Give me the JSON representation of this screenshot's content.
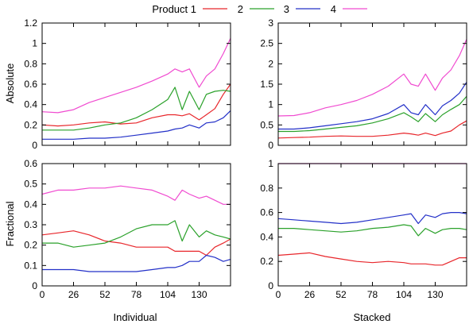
{
  "legend": {
    "items": [
      {
        "label": "Product 1",
        "color": "#e8262b"
      },
      {
        "label": "2",
        "color": "#2aa12a"
      },
      {
        "label": "3",
        "color": "#2330c8"
      },
      {
        "label": "4",
        "color": "#f04bd0"
      }
    ]
  },
  "labels": {
    "row_top": "Absolute",
    "row_bottom": "Fractional",
    "col_left": "Individual",
    "col_right": "Stacked"
  },
  "chart_data": [
    {
      "type": "line",
      "panel": "absolute-individual",
      "xlim": [
        0,
        156
      ],
      "ylim": [
        0,
        1.2
      ],
      "xticks": [
        0,
        26,
        52,
        78,
        104,
        130
      ],
      "yticks": [
        "0",
        "0.2",
        "0.4",
        "0.6",
        "0.8",
        "1",
        "1.2"
      ],
      "x": [
        0,
        13,
        26,
        39,
        52,
        65,
        78,
        91,
        104,
        110,
        116,
        122,
        130,
        136,
        143,
        150,
        156
      ],
      "series": [
        {
          "name": "Product 1",
          "values": [
            0.2,
            0.19,
            0.2,
            0.22,
            0.23,
            0.21,
            0.22,
            0.27,
            0.3,
            0.3,
            0.29,
            0.31,
            0.25,
            0.3,
            0.36,
            0.5,
            0.6
          ]
        },
        {
          "name": "2",
          "values": [
            0.15,
            0.15,
            0.15,
            0.17,
            0.2,
            0.22,
            0.27,
            0.35,
            0.45,
            0.57,
            0.35,
            0.53,
            0.35,
            0.5,
            0.53,
            0.54,
            0.53
          ]
        },
        {
          "name": "3",
          "values": [
            0.06,
            0.06,
            0.06,
            0.07,
            0.07,
            0.08,
            0.1,
            0.12,
            0.14,
            0.16,
            0.17,
            0.2,
            0.17,
            0.22,
            0.23,
            0.27,
            0.34
          ]
        },
        {
          "name": "4",
          "values": [
            0.33,
            0.32,
            0.35,
            0.42,
            0.47,
            0.52,
            0.57,
            0.63,
            0.7,
            0.75,
            0.72,
            0.75,
            0.57,
            0.68,
            0.75,
            0.9,
            1.05
          ]
        }
      ]
    },
    {
      "type": "line",
      "panel": "absolute-stacked",
      "xlim": [
        0,
        156
      ],
      "ylim": [
        0,
        3
      ],
      "xticks": [
        0,
        26,
        52,
        78,
        104,
        130
      ],
      "yticks": [
        "0",
        "0.5",
        "1",
        "1.5",
        "2",
        "2.5",
        "3"
      ],
      "x": [
        0,
        13,
        26,
        39,
        52,
        65,
        78,
        91,
        104,
        110,
        116,
        122,
        130,
        136,
        143,
        150,
        156
      ],
      "series": [
        {
          "name": "Product 1",
          "values": [
            0.18,
            0.19,
            0.2,
            0.22,
            0.23,
            0.22,
            0.22,
            0.25,
            0.3,
            0.28,
            0.25,
            0.3,
            0.24,
            0.3,
            0.35,
            0.5,
            0.6
          ]
        },
        {
          "name": "2",
          "values": [
            0.34,
            0.34,
            0.36,
            0.4,
            0.44,
            0.48,
            0.55,
            0.65,
            0.8,
            0.7,
            0.58,
            0.78,
            0.58,
            0.75,
            0.88,
            1.0,
            1.2
          ]
        },
        {
          "name": "3",
          "values": [
            0.4,
            0.4,
            0.43,
            0.48,
            0.53,
            0.58,
            0.65,
            0.78,
            1.0,
            0.8,
            0.75,
            1.0,
            0.75,
            0.97,
            1.1,
            1.28,
            1.55
          ]
        },
        {
          "name": "4",
          "values": [
            0.72,
            0.73,
            0.8,
            0.92,
            1.0,
            1.1,
            1.25,
            1.45,
            1.75,
            1.5,
            1.45,
            1.75,
            1.35,
            1.65,
            1.85,
            2.2,
            2.6
          ]
        }
      ]
    },
    {
      "type": "line",
      "panel": "fractional-individual",
      "xlim": [
        0,
        156
      ],
      "ylim": [
        0,
        0.6
      ],
      "xticks": [
        0,
        26,
        52,
        78,
        104,
        130
      ],
      "yticks": [
        "0",
        "0.1",
        "0.2",
        "0.3",
        "0.4",
        "0.5",
        "0.6"
      ],
      "x": [
        0,
        13,
        26,
        39,
        52,
        65,
        78,
        91,
        104,
        110,
        116,
        122,
        130,
        136,
        143,
        150,
        156
      ],
      "series": [
        {
          "name": "Product 1",
          "values": [
            0.25,
            0.26,
            0.27,
            0.25,
            0.22,
            0.21,
            0.19,
            0.19,
            0.19,
            0.17,
            0.17,
            0.17,
            0.17,
            0.15,
            0.19,
            0.21,
            0.23
          ]
        },
        {
          "name": "2",
          "values": [
            0.21,
            0.21,
            0.19,
            0.2,
            0.21,
            0.24,
            0.28,
            0.3,
            0.3,
            0.32,
            0.22,
            0.3,
            0.24,
            0.27,
            0.25,
            0.24,
            0.23
          ]
        },
        {
          "name": "3",
          "values": [
            0.08,
            0.08,
            0.08,
            0.07,
            0.07,
            0.07,
            0.07,
            0.08,
            0.09,
            0.09,
            0.1,
            0.12,
            0.12,
            0.15,
            0.14,
            0.12,
            0.13
          ]
        },
        {
          "name": "4",
          "values": [
            0.45,
            0.47,
            0.47,
            0.48,
            0.48,
            0.49,
            0.48,
            0.47,
            0.44,
            0.42,
            0.47,
            0.45,
            0.43,
            0.44,
            0.42,
            0.4,
            0.4
          ]
        }
      ]
    },
    {
      "type": "line",
      "panel": "fractional-stacked",
      "xlim": [
        0,
        156
      ],
      "ylim": [
        0,
        1
      ],
      "xticks": [
        0,
        26,
        52,
        78,
        104,
        130
      ],
      "yticks": [
        "0",
        "0.2",
        "0.4",
        "0.6",
        "0.8",
        "1"
      ],
      "x": [
        0,
        13,
        26,
        39,
        52,
        65,
        78,
        91,
        104,
        110,
        116,
        122,
        130,
        136,
        143,
        150,
        156
      ],
      "series": [
        {
          "name": "Product 1",
          "values": [
            0.25,
            0.26,
            0.27,
            0.24,
            0.22,
            0.2,
            0.19,
            0.2,
            0.19,
            0.18,
            0.18,
            0.18,
            0.17,
            0.17,
            0.2,
            0.23,
            0.23
          ]
        },
        {
          "name": "2",
          "values": [
            0.47,
            0.47,
            0.46,
            0.45,
            0.44,
            0.45,
            0.47,
            0.48,
            0.5,
            0.49,
            0.41,
            0.47,
            0.43,
            0.46,
            0.47,
            0.47,
            0.46
          ]
        },
        {
          "name": "3",
          "values": [
            0.55,
            0.54,
            0.53,
            0.52,
            0.51,
            0.52,
            0.54,
            0.56,
            0.58,
            0.59,
            0.51,
            0.58,
            0.56,
            0.59,
            0.6,
            0.6,
            0.59
          ]
        },
        {
          "name": "4",
          "values": [
            1,
            1,
            1,
            1,
            1,
            1,
            1,
            1,
            1,
            1,
            1,
            1,
            1,
            1,
            1,
            1,
            1
          ]
        }
      ]
    }
  ]
}
